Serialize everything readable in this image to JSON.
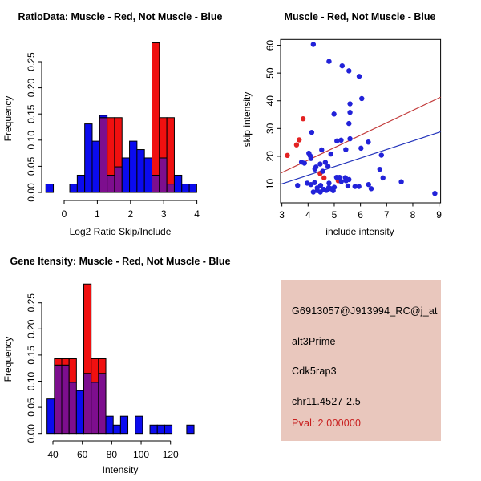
{
  "window": {
    "background": "#ffffff"
  },
  "colors": {
    "hist_blue": "#0b0bef",
    "hist_red": "#f01010",
    "overlap_purple": "#7d0e8e",
    "bar_border": "#000000",
    "point_blue": "#2222d9",
    "point_red": "#e32222",
    "fit_line_red": "#c23a3a",
    "fit_line_blue": "#2233bb",
    "axis": "#000000",
    "text": "#000000"
  },
  "chart_data": [
    {
      "id": "ratio-histogram",
      "type": "bar",
      "subtype": "overlaid-histogram",
      "title": "RatioData: Muscle - Red, Not Muscle - Blue",
      "xlabel": "Log2 Ratio Skip/Include",
      "ylabel": "Frequency",
      "grid": false,
      "xticks": [
        0,
        1,
        2,
        3,
        4
      ],
      "ytick_values": [
        0,
        0.05,
        0.1,
        0.15,
        0.2,
        0.25
      ],
      "ytick_labels": [
        "0.00",
        "0.05",
        "0.10",
        "0.15",
        "0.20",
        "0.25"
      ],
      "series_note": "red = muscle, blue = not muscle, purple = overlap of both",
      "bars": [
        [
          -0.55,
          -0.325,
          [
            [
              "blue",
              0,
              0.016
            ]
          ]
        ],
        [
          0.17,
          0.395,
          [
            [
              "blue",
              0,
              0.016
            ]
          ]
        ],
        [
          0.395,
          0.62,
          [
            [
              "blue",
              0,
              0.033
            ]
          ]
        ],
        [
          0.62,
          0.845,
          [
            [
              "blue",
              0,
              0.131
            ]
          ]
        ],
        [
          0.845,
          1.07,
          [
            [
              "blue",
              0,
              0.098
            ]
          ]
        ],
        [
          1.07,
          1.295,
          [
            [
              "purple",
              0,
              0.143
            ],
            [
              "blue",
              0.143,
              0.1475
            ]
          ]
        ],
        [
          1.295,
          1.52,
          [
            [
              "purple",
              0,
              0.033
            ],
            [
              "red",
              0.033,
              0.143
            ]
          ]
        ],
        [
          1.52,
          1.745,
          [
            [
              "purple",
              0,
              0.049
            ],
            [
              "red",
              0.049,
              0.143
            ]
          ]
        ],
        [
          1.745,
          1.97,
          [
            [
              "blue",
              0,
              0.066
            ]
          ]
        ],
        [
          1.97,
          2.195,
          [
            [
              "blue",
              0,
              0.098
            ]
          ]
        ],
        [
          2.195,
          2.42,
          [
            [
              "blue",
              0,
              0.082
            ]
          ]
        ],
        [
          2.42,
          2.645,
          [
            [
              "blue",
              0,
              0.066
            ]
          ]
        ],
        [
          2.645,
          2.87,
          [
            [
              "purple",
              0,
              0.033
            ],
            [
              "red",
              0.033,
              0.286
            ]
          ]
        ],
        [
          2.87,
          3.095,
          [
            [
              "purple",
              0,
              0.066
            ],
            [
              "red",
              0.066,
              0.143
            ]
          ]
        ],
        [
          3.095,
          3.32,
          [
            [
              "purple",
              0,
              0.016
            ],
            [
              "red",
              0.016,
              0.143
            ]
          ]
        ],
        [
          3.32,
          3.545,
          [
            [
              "blue",
              0,
              0.033
            ]
          ]
        ],
        [
          3.545,
          3.77,
          [
            [
              "blue",
              0,
              0.016
            ]
          ]
        ],
        [
          3.77,
          3.995,
          [
            [
              "blue",
              0,
              0.016
            ]
          ]
        ]
      ]
    },
    {
      "id": "intensity-scatter",
      "type": "scatter",
      "title": "Muscle - Red, Not Muscle - Blue",
      "xlabel": "include intensity",
      "ylabel": "skip intensity",
      "grid": false,
      "xticks": [
        3,
        4,
        5,
        6,
        7,
        8,
        9
      ],
      "yticks": [
        10,
        20,
        30,
        40,
        50,
        60
      ],
      "xlim": [
        2.95,
        9.06
      ],
      "ylim": [
        3.2,
        62.1
      ],
      "series": [
        {
          "name": "muscle",
          "color": "point_red",
          "points": [
            [
              3.21,
              20.3
            ],
            [
              3.56,
              24.1
            ],
            [
              3.66,
              25.9
            ],
            [
              3.81,
              33.5
            ],
            [
              4.46,
              13.8
            ],
            [
              4.61,
              12.2
            ],
            [
              5.15,
              11.2
            ]
          ]
        },
        {
          "name": "not_muscle",
          "color": "point_blue",
          "points": [
            [
              4.2,
              60.3
            ],
            [
              4.8,
              54.2
            ],
            [
              5.3,
              52.6
            ],
            [
              5.56,
              50.8
            ],
            [
              5.95,
              48.8
            ],
            [
              6.05,
              40.8
            ],
            [
              5.6,
              38.9
            ],
            [
              4.99,
              35.2
            ],
            [
              5.6,
              35.8
            ],
            [
              5.56,
              31.8
            ],
            [
              4.14,
              28.6
            ],
            [
              5.6,
              26.3
            ],
            [
              5.1,
              25.5
            ],
            [
              5.26,
              25.8
            ],
            [
              6.3,
              25.1
            ],
            [
              6.02,
              22.9
            ],
            [
              5.44,
              22.4
            ],
            [
              4.52,
              22.3
            ],
            [
              4.03,
              21.1
            ],
            [
              4.08,
              20.2
            ],
            [
              4.11,
              19.2
            ],
            [
              4.87,
              20.8
            ],
            [
              6.8,
              20.4
            ],
            [
              3.75,
              17.9
            ],
            [
              3.86,
              17.5
            ],
            [
              4.46,
              17.2
            ],
            [
              4.66,
              17.8
            ],
            [
              4.76,
              16.4
            ],
            [
              4.3,
              16.1
            ],
            [
              4.56,
              14.6
            ],
            [
              6.74,
              15.3
            ],
            [
              4.26,
              15.4
            ],
            [
              3.6,
              9.5
            ],
            [
              3.97,
              10.3
            ],
            [
              4.11,
              9.8
            ],
            [
              4.25,
              10.5
            ],
            [
              4.35,
              8.6
            ],
            [
              4.48,
              9.5
            ],
            [
              4.6,
              8.1
            ],
            [
              4.79,
              8.7
            ],
            [
              4.8,
              10.3
            ],
            [
              4.96,
              7.6
            ],
            [
              4.7,
              7.7
            ],
            [
              4.87,
              8.3
            ],
            [
              5.0,
              8.8
            ],
            [
              4.2,
              7.1
            ],
            [
              4.35,
              7.6
            ],
            [
              4.47,
              7.1
            ],
            [
              5.09,
              12.4
            ],
            [
              5.2,
              12.4
            ],
            [
              5.42,
              12.3
            ],
            [
              5.56,
              11.6
            ],
            [
              5.27,
              10.9
            ],
            [
              5.45,
              11.2
            ],
            [
              5.52,
              9.3
            ],
            [
              5.79,
              9.1
            ],
            [
              5.94,
              9.1
            ],
            [
              6.31,
              9.8
            ],
            [
              6.41,
              8.3
            ],
            [
              6.86,
              12.2
            ],
            [
              7.56,
              10.8
            ],
            [
              8.84,
              6.6
            ]
          ]
        }
      ],
      "fit_lines": [
        {
          "name": "muscle-fit",
          "color": "fit_line_red",
          "x1": 2.95,
          "y1": 13.9,
          "x2": 9.06,
          "y2": 41.3
        },
        {
          "name": "not-muscle-fit",
          "color": "fit_line_blue",
          "x1": 2.95,
          "y1": 9.9,
          "x2": 9.06,
          "y2": 28.8
        }
      ]
    },
    {
      "id": "intensity-histogram",
      "type": "bar",
      "subtype": "overlaid-histogram",
      "title": "Gene Itensity: Muscle - Red, Not Muscle - Blue",
      "xlabel": "Intensity",
      "ylabel": "Frequency",
      "grid": false,
      "xticks": [
        40,
        60,
        80,
        100,
        120
      ],
      "ytick_values": [
        0,
        0.05,
        0.1,
        0.15,
        0.2,
        0.25
      ],
      "ytick_labels": [
        "0.00",
        "0.05",
        "0.10",
        "0.15",
        "0.20",
        "0.25"
      ],
      "series_note": "red = muscle, blue = not muscle, purple = overlap of both",
      "bars": [
        [
          36,
          41,
          [
            [
              "blue",
              0,
              0.066
            ]
          ]
        ],
        [
          41,
          46,
          [
            [
              "purple",
              0,
              0.131
            ],
            [
              "red",
              0.131,
              0.143
            ]
          ]
        ],
        [
          46,
          51,
          [
            [
              "purple",
              0,
              0.131
            ],
            [
              "red",
              0.131,
              0.143
            ]
          ]
        ],
        [
          51,
          56,
          [
            [
              "purple",
              0,
              0.098
            ],
            [
              "red",
              0.098,
              0.143
            ]
          ]
        ],
        [
          56,
          61,
          [
            [
              "blue",
              0,
              0.082
            ]
          ]
        ],
        [
          61,
          66,
          [
            [
              "purple",
              0,
              0.115
            ],
            [
              "red",
              0.115,
              0.286
            ]
          ]
        ],
        [
          66,
          71,
          [
            [
              "purple",
              0,
              0.098
            ],
            [
              "red",
              0.098,
              0.143
            ]
          ]
        ],
        [
          71,
          76,
          [
            [
              "purple",
              0,
              0.115
            ],
            [
              "red",
              0.115,
              0.143
            ]
          ]
        ],
        [
          76,
          81,
          [
            [
              "blue",
              0,
              0.033
            ]
          ]
        ],
        [
          81,
          86,
          [
            [
              "blue",
              0,
              0.016
            ]
          ]
        ],
        [
          86,
          91,
          [
            [
              "blue",
              0,
              0.033
            ]
          ]
        ],
        [
          96,
          101,
          [
            [
              "blue",
              0,
              0.033
            ]
          ]
        ],
        [
          106,
          111,
          [
            [
              "blue",
              0,
              0.016
            ]
          ]
        ],
        [
          111,
          116,
          [
            [
              "blue",
              0,
              0.016
            ]
          ]
        ],
        [
          116,
          121,
          [
            [
              "blue",
              0,
              0.016
            ]
          ]
        ],
        [
          131,
          136,
          [
            [
              "blue",
              0,
              0.016
            ]
          ]
        ]
      ]
    }
  ],
  "info_panel": {
    "bg": "#e9c7bd",
    "probe_id": "G6913057@J913994_RC@j_at",
    "event_type": "alt3Prime",
    "gene": "Cdk5rap3",
    "locus": "chr11.4527-2.5",
    "pval": "Pval: 2.000000",
    "pval_color": "#c81e1e",
    "text_color": "#000000"
  }
}
